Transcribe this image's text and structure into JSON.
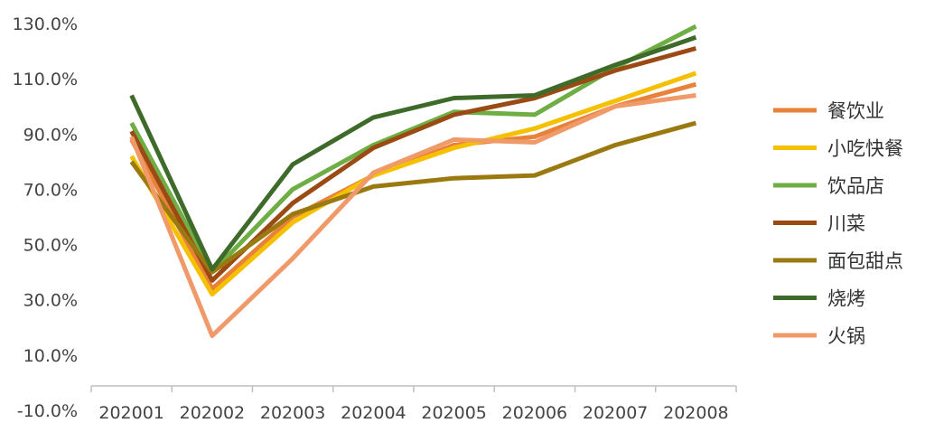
{
  "chart_data": {
    "type": "line",
    "title": "",
    "xlabel": "",
    "ylabel": "",
    "categories": [
      "202001",
      "202002",
      "202003",
      "202004",
      "202005",
      "202006",
      "202007",
      "202008"
    ],
    "y_ticks": [
      "-10.0%",
      "10.0%",
      "30.0%",
      "50.0%",
      "70.0%",
      "90.0%",
      "110.0%",
      "130.0%"
    ],
    "ylim": [
      -10,
      130
    ],
    "grid": false,
    "legend_position": "right",
    "series": [
      {
        "name": "餐饮业",
        "color": "#E8823A",
        "values": [
          88,
          34,
          60,
          75,
          86,
          89,
          100,
          108
        ]
      },
      {
        "name": "小吃快餐",
        "color": "#F5C000",
        "values": [
          82,
          32,
          58,
          75,
          85,
          92,
          102,
          112
        ]
      },
      {
        "name": "饮品店",
        "color": "#6FAE45",
        "values": [
          94,
          40,
          70,
          86,
          98,
          97,
          114,
          129
        ]
      },
      {
        "name": "川菜",
        "color": "#9A4A12",
        "values": [
          91,
          37,
          65,
          85,
          97,
          103,
          113,
          121
        ]
      },
      {
        "name": "面包甜点",
        "color": "#9A7A10",
        "values": [
          80,
          40,
          61,
          71,
          74,
          75,
          86,
          94
        ]
      },
      {
        "name": "烧烤",
        "color": "#3E6B2A",
        "values": [
          104,
          41,
          79,
          96,
          103,
          104,
          115,
          125
        ]
      },
      {
        "name": "火锅",
        "color": "#F09A6A",
        "values": [
          89,
          17,
          45,
          76,
          88,
          87,
          100,
          104
        ]
      }
    ]
  }
}
